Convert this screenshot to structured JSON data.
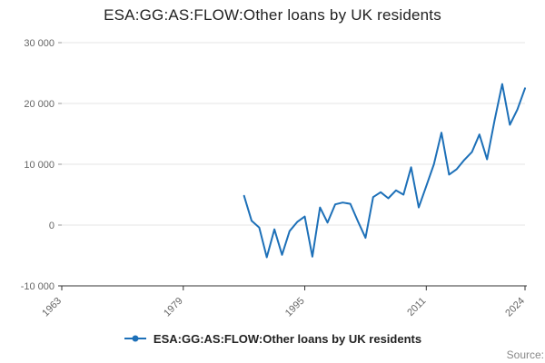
{
  "title": "ESA:GG:AS:FLOW:Other loans by UK residents",
  "legend": {
    "label": "ESA:GG:AS:FLOW:Other loans by UK residents"
  },
  "source_label": "Source:",
  "chart_data": {
    "type": "line",
    "title": "ESA:GG:AS:FLOW:Other loans by UK residents",
    "xlabel": "",
    "ylabel": "",
    "xlim": [
      1963,
      2024
    ],
    "ylim": [
      -10000,
      30000
    ],
    "grid": true,
    "legend_position": "bottom",
    "line_color": "#1d70b8",
    "grid_color": "#e6e6e6",
    "axis_color": "#333333",
    "tick_label_color": "#666666",
    "xticks": [
      {
        "value": 1963,
        "label": "1963"
      },
      {
        "value": 1979,
        "label": "1979"
      },
      {
        "value": 1995,
        "label": "1995"
      },
      {
        "value": 2011,
        "label": "2011"
      },
      {
        "value": 2024,
        "label": "2024"
      }
    ],
    "yticks": [
      {
        "value": 30000,
        "label": "30 000"
      },
      {
        "value": 20000,
        "label": "20 000"
      },
      {
        "value": 10000,
        "label": "10 000"
      },
      {
        "value": 0,
        "label": "0"
      },
      {
        "value": -10000,
        "label": "-10 000"
      }
    ],
    "series": [
      {
        "name": "ESA:GG:AS:FLOW:Other loans by UK residents",
        "x": [
          1987,
          1988,
          1989,
          1990,
          1991,
          1992,
          1993,
          1994,
          1995,
          1996,
          1997,
          1998,
          1999,
          2000,
          2001,
          2002,
          2003,
          2004,
          2005,
          2006,
          2007,
          2008,
          2009,
          2010,
          2011,
          2012,
          2013,
          2014,
          2015,
          2016,
          2017,
          2018,
          2019,
          2020,
          2021,
          2022,
          2023,
          2024
        ],
        "values": [
          4800,
          700,
          -400,
          -5300,
          -700,
          -4900,
          -1000,
          500,
          1400,
          -5200,
          2900,
          400,
          3400,
          3700,
          3500,
          600,
          -2100,
          4600,
          5400,
          4400,
          5700,
          5000,
          9500,
          2900,
          6400,
          10000,
          15200,
          8300,
          9200,
          10700,
          12000,
          14900,
          10800,
          17300,
          23200,
          16500,
          19000,
          22500
        ]
      }
    ]
  }
}
